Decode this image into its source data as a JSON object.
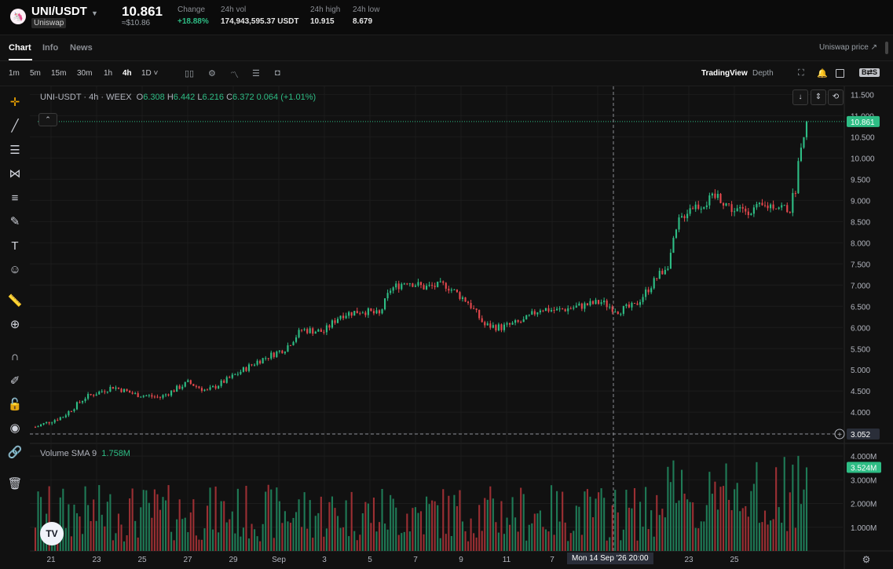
{
  "header": {
    "pair": "UNI/USDT",
    "exchange_tag": "Uniswap",
    "last_price": "10.861",
    "price_usd": "≈$10.86",
    "stats": [
      {
        "label": "Change",
        "value": "+18.88%",
        "positive": true
      },
      {
        "label": "24h vol",
        "value": "174,943,595.37 USDT",
        "positive": false
      },
      {
        "label": "24h high",
        "value": "10.915",
        "positive": false
      },
      {
        "label": "24h low",
        "value": "8.679",
        "positive": false
      }
    ]
  },
  "nav": {
    "tabs": [
      "Chart",
      "Info",
      "News"
    ],
    "active_tab": "Chart",
    "right_link": "Uniswap price ↗"
  },
  "toolbar": {
    "timeframes": [
      "1m",
      "5m",
      "15m",
      "30m",
      "1h",
      "4h",
      "1D ˅"
    ],
    "active_timeframe": "4h",
    "icons": [
      "candles-icon",
      "indicator-gear-icon",
      "indicators-icon",
      "template-icon",
      "camera-icon"
    ],
    "views": {
      "tradingview": "TradingView",
      "depth": "Depth"
    },
    "right_icons": [
      "fullscreen-icon",
      "alert-icon",
      "layout-icon",
      "compare-icon"
    ],
    "compare_label": "B⇄S"
  },
  "drawing_tools": [
    "crosshair-icon",
    "trendline-icon",
    "horizontal-lines-icon",
    "pattern-icon",
    "fib-icon",
    "brush-icon",
    "text-icon",
    "emoji-icon",
    "ruler-icon",
    "zoom-icon",
    "magnet-icon",
    "pencil-lock-icon",
    "lock-icon",
    "eye-icon",
    "link-icon",
    "trash-icon"
  ],
  "legend": {
    "symbol": "UNI-USDT · 4h · WEEX",
    "o_label": "O",
    "o": "6.308",
    "h_label": "H",
    "h": "6.442",
    "l_label": "L",
    "l": "6.216",
    "c_label": "C",
    "c": "6.372",
    "change": "0.064 (+1.01%)"
  },
  "volume_legend": {
    "label": "Volume SMA 9",
    "value": "1.758M"
  },
  "price_axis": {
    "labels": [
      "11.500",
      "11.000",
      "10.500",
      "10.000",
      "9.500",
      "9.000",
      "8.500",
      "8.000",
      "7.500",
      "7.000",
      "6.500",
      "6.000",
      "5.500",
      "5.000",
      "4.500",
      "4.000",
      "3.500"
    ],
    "last_price_tag": "10.861",
    "crosshair_price_tag": "3.052"
  },
  "volume_axis": {
    "labels": [
      "4.000M",
      "3.000M",
      "2.000M",
      "1.000M"
    ],
    "last_volume_tag": "3.524M"
  },
  "time_axis": {
    "labels": [
      "21",
      "23",
      "25",
      "27",
      "29",
      "Sep",
      "3",
      "5",
      "7",
      "9",
      "11",
      "7",
      "19",
      "21",
      "23",
      "25"
    ],
    "crosshair_label": "Mon 14 Sep '26   20:00"
  },
  "tv_logo": "TV",
  "colors": {
    "up": "#2ebd85",
    "down": "#e5484d",
    "background": "#0b0b0b",
    "grid": "#1c1c1c"
  },
  "chart_data": {
    "type": "candlestick",
    "timeframe": "4h",
    "price_range": [
      3.3,
      11.6
    ],
    "volume_range_millions": [
      0,
      4.5
    ],
    "keypoints": [
      [
        0,
        3.65
      ],
      [
        10,
        3.9
      ],
      [
        18,
        4.35
      ],
      [
        28,
        4.6
      ],
      [
        36,
        4.42
      ],
      [
        45,
        4.35
      ],
      [
        55,
        4.7
      ],
      [
        62,
        4.5
      ],
      [
        70,
        4.8
      ],
      [
        80,
        5.2
      ],
      [
        90,
        5.5
      ],
      [
        96,
        5.95
      ],
      [
        104,
        5.9
      ],
      [
        110,
        6.3
      ],
      [
        118,
        6.4
      ],
      [
        124,
        6.3
      ],
      [
        128,
        6.9
      ],
      [
        134,
        7.1
      ],
      [
        140,
        6.95
      ],
      [
        148,
        7.0
      ],
      [
        156,
        6.6
      ],
      [
        162,
        6.05
      ],
      [
        168,
        6.0
      ],
      [
        176,
        6.15
      ],
      [
        182,
        6.45
      ],
      [
        188,
        6.4
      ],
      [
        196,
        6.5
      ],
      [
        204,
        6.6
      ],
      [
        210,
        6.4
      ],
      [
        216,
        6.5
      ],
      [
        222,
        7.0
      ],
      [
        228,
        7.5
      ],
      [
        232,
        8.5
      ],
      [
        236,
        8.85
      ],
      [
        240,
        8.9
      ],
      [
        246,
        9.1
      ],
      [
        252,
        8.75
      ],
      [
        260,
        8.8
      ],
      [
        266,
        8.9
      ],
      [
        272,
        8.8
      ],
      [
        274,
        9.3
      ],
      [
        276,
        10.4
      ],
      [
        278,
        10.861
      ]
    ],
    "volume_sma9_millions": 1.758,
    "last_volume_millions": 3.524
  }
}
